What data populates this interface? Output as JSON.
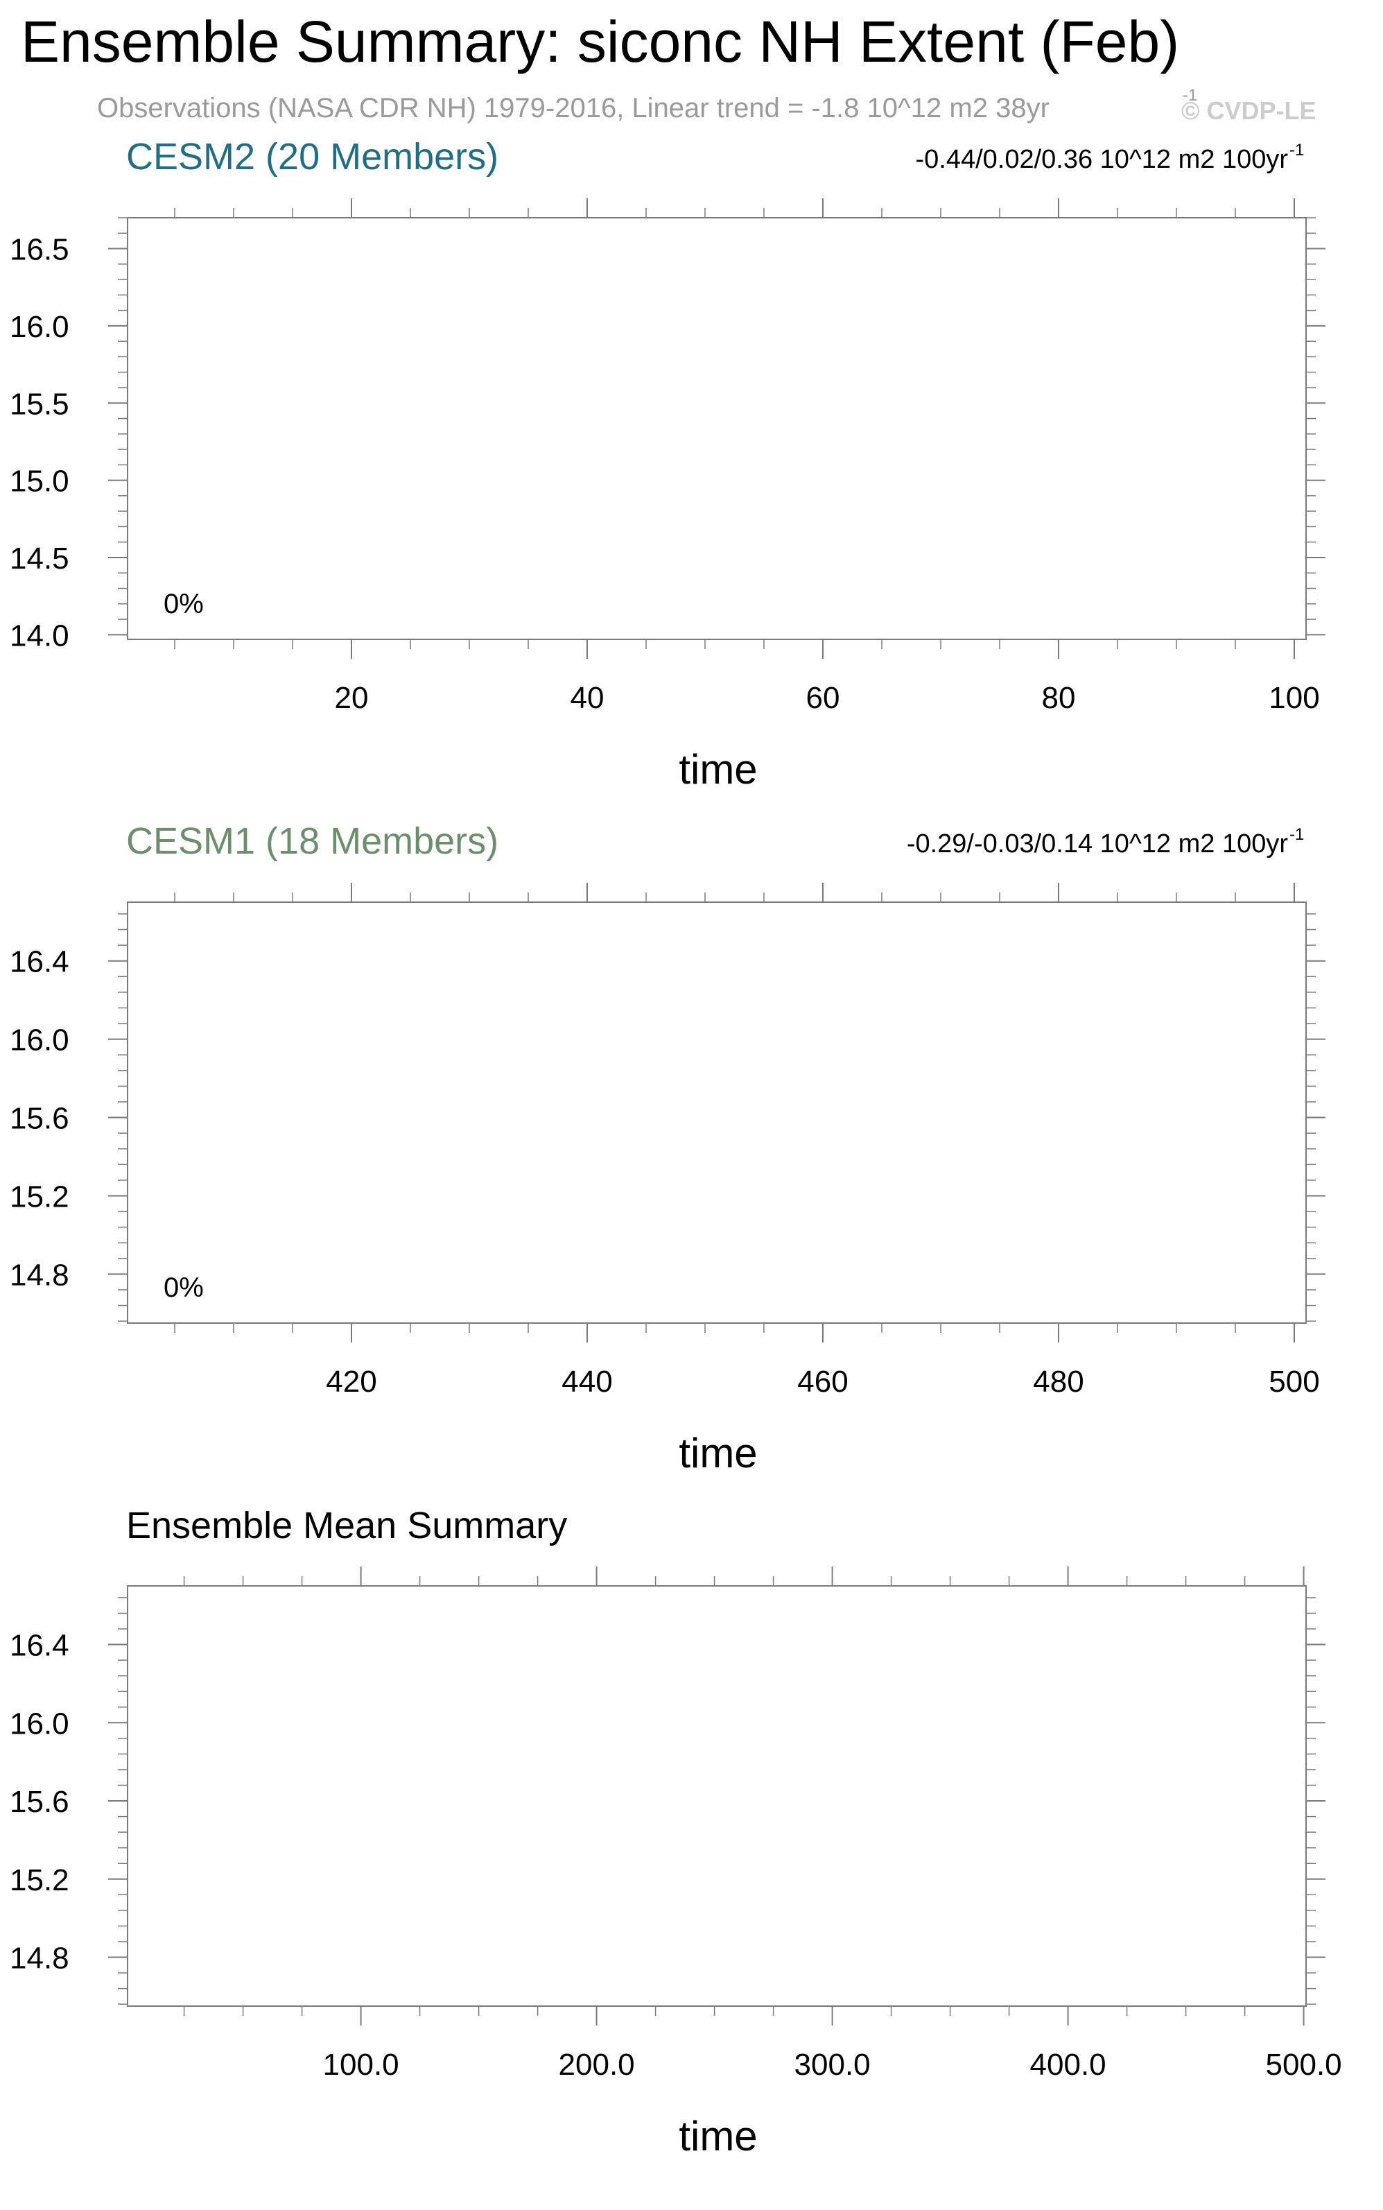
{
  "header": {
    "title": "Ensemble Summary: siconc NH Extent (Feb)",
    "subtitle": "Observations (NASA CDR NH) 1979-2016, Linear trend = -1.8 10^12 m2 38yr",
    "subtitle_sup": "-1",
    "watermark": "© CVDP-LE"
  },
  "colors": {
    "cesm2": "#1f6e86",
    "cesm1": "#6a8f6a",
    "neutral": "#000000",
    "axis": "#7a7a7a",
    "watermark": "#cccccc",
    "subtitle": "#9a9a9a"
  },
  "chart_data": [
    {
      "type": "line",
      "title": "CESM2 (20 Members)",
      "title_color": "cesm2",
      "trend_text": "-0.44/0.02/0.36 10^12 m2 100yr",
      "trend_sup": "-1",
      "annotation": "0%",
      "xlabel": "time",
      "ylabel": "",
      "xlim": [
        1,
        101
      ],
      "ylim": [
        13.97,
        16.7
      ],
      "xticks": [
        20,
        40,
        60,
        80,
        100
      ],
      "xtick_labels": [
        "20",
        "40",
        "60",
        "80",
        "100"
      ],
      "yticks": [
        14.0,
        14.5,
        15.0,
        15.5,
        16.0,
        16.5
      ],
      "ytick_labels": [
        "14.0",
        "14.5",
        "15.0",
        "15.5",
        "16.0",
        "16.5"
      ],
      "grid": false,
      "series": []
    },
    {
      "type": "line",
      "title": "CESM1 (18 Members)",
      "title_color": "cesm1",
      "trend_text": "-0.29/-0.03/0.14 10^12 m2 100yr",
      "trend_sup": "-1",
      "annotation": "0%",
      "xlabel": "time",
      "ylabel": "",
      "xlim": [
        401,
        501
      ],
      "ylim": [
        14.55,
        16.7
      ],
      "xticks": [
        420,
        440,
        460,
        480,
        500
      ],
      "xtick_labels": [
        "420",
        "440",
        "460",
        "480",
        "500"
      ],
      "yticks": [
        14.8,
        15.2,
        15.6,
        16.0,
        16.4
      ],
      "ytick_labels": [
        "14.8",
        "15.2",
        "15.6",
        "16.0",
        "16.4"
      ],
      "grid": false,
      "series": []
    },
    {
      "type": "line",
      "title": "Ensemble Mean Summary",
      "title_color": "neutral",
      "trend_text": "",
      "trend_sup": "",
      "annotation": "",
      "xlabel": "time",
      "ylabel": "",
      "xlim": [
        1,
        501
      ],
      "ylim": [
        14.55,
        16.7
      ],
      "xticks": [
        100,
        200,
        300,
        400,
        500
      ],
      "xtick_labels": [
        "100.0",
        "200.0",
        "300.0",
        "400.0",
        "500.0"
      ],
      "yticks": [
        14.8,
        15.2,
        15.6,
        16.0,
        16.4
      ],
      "ytick_labels": [
        "14.8",
        "15.2",
        "15.6",
        "16.0",
        "16.4"
      ],
      "grid": false,
      "series": []
    }
  ]
}
